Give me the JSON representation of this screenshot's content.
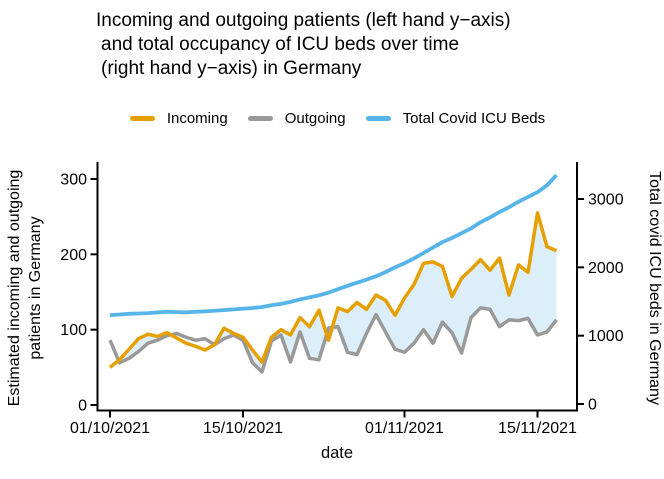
{
  "title": {
    "line1": "Incoming and outgoing patients (left hand y−axis)",
    "line2": "and total occupancy of ICU beds over time",
    "line3": "(right hand y−axis) in Germany"
  },
  "legend": {
    "items": [
      {
        "label": "Incoming",
        "color": "#E69F00"
      },
      {
        "label": "Outgoing",
        "color": "#999999"
      },
      {
        "label": "Total Covid ICU Beds",
        "color": "#56B4E9"
      }
    ]
  },
  "chart_data": {
    "type": "line",
    "title": "Incoming and outgoing patients (left hand y-axis) and total occupancy of ICU beds over time (right hand y-axis) in Germany",
    "x": [
      "01/10/2021",
      "02/10/2021",
      "03/10/2021",
      "04/10/2021",
      "05/10/2021",
      "06/10/2021",
      "07/10/2021",
      "08/10/2021",
      "09/10/2021",
      "10/10/2021",
      "11/10/2021",
      "12/10/2021",
      "13/10/2021",
      "14/10/2021",
      "15/10/2021",
      "16/10/2021",
      "17/10/2021",
      "18/10/2021",
      "19/10/2021",
      "20/10/2021",
      "21/10/2021",
      "22/10/2021",
      "23/10/2021",
      "24/10/2021",
      "25/10/2021",
      "26/10/2021",
      "27/10/2021",
      "28/10/2021",
      "29/10/2021",
      "30/10/2021",
      "31/10/2021",
      "01/11/2021",
      "02/11/2021",
      "03/11/2021",
      "04/11/2021",
      "05/11/2021",
      "06/11/2021",
      "07/11/2021",
      "08/11/2021",
      "09/11/2021",
      "10/11/2021",
      "11/11/2021",
      "12/11/2021",
      "13/11/2021",
      "14/11/2021",
      "15/11/2021",
      "16/11/2021",
      "17/11/2021"
    ],
    "series": [
      {
        "name": "Incoming",
        "axis": "left",
        "color": "#E69F00",
        "values": [
          50,
          60,
          74,
          88,
          94,
          91,
          96,
          89,
          82,
          78,
          73,
          80,
          102,
          95,
          90,
          73,
          57,
          90,
          100,
          93,
          116,
          104,
          126,
          86,
          129,
          124,
          136,
          127,
          146,
          139,
          119,
          142,
          160,
          188,
          190,
          184,
          144,
          168,
          180,
          193,
          179,
          195,
          146,
          186,
          176,
          255,
          210,
          205
        ]
      },
      {
        "name": "Outgoing",
        "axis": "left",
        "color": "#999999",
        "values": [
          86,
          56,
          62,
          71,
          82,
          86,
          92,
          95,
          90,
          86,
          88,
          80,
          88,
          93,
          86,
          56,
          44,
          85,
          93,
          57,
          97,
          62,
          60,
          102,
          104,
          70,
          67,
          95,
          120,
          97,
          74,
          70,
          82,
          100,
          82,
          110,
          96,
          69,
          116,
          129,
          127,
          104,
          113,
          112,
          115,
          93,
          97,
          113
        ]
      },
      {
        "name": "Total Covid ICU Beds",
        "axis": "right",
        "color": "#56B4E9",
        "values": [
          1300,
          1310,
          1320,
          1325,
          1330,
          1340,
          1350,
          1345,
          1340,
          1350,
          1355,
          1365,
          1375,
          1385,
          1395,
          1405,
          1420,
          1445,
          1465,
          1495,
          1530,
          1560,
          1590,
          1630,
          1680,
          1730,
          1775,
          1820,
          1870,
          1930,
          2000,
          2060,
          2130,
          2210,
          2290,
          2370,
          2430,
          2500,
          2570,
          2660,
          2730,
          2810,
          2880,
          2960,
          3030,
          3100,
          3200,
          3350
        ]
      }
    ],
    "ribbon": {
      "between": [
        "Outgoing",
        "Incoming"
      ],
      "fill": "#DCEEF9",
      "note": "shaded only where Incoming > Outgoing"
    },
    "left_axis": {
      "label_line1": "Estimated incoming and outgoing",
      "label_line2": "patients in Germany",
      "ticks": [
        0,
        100,
        200,
        300
      ],
      "range": [
        0,
        325
      ]
    },
    "right_axis": {
      "label": "Total covid ICU beds in Germany",
      "ticks": [
        0,
        1000,
        2000,
        3000
      ],
      "range": [
        0,
        3550
      ]
    },
    "x_axis": {
      "label": "date",
      "ticks": [
        "01/10/2021",
        "15/10/2021",
        "01/11/2021",
        "15/11/2021"
      ],
      "tick_days": [
        0,
        14,
        31,
        45
      ]
    },
    "legend_position": "top",
    "grid": false
  }
}
